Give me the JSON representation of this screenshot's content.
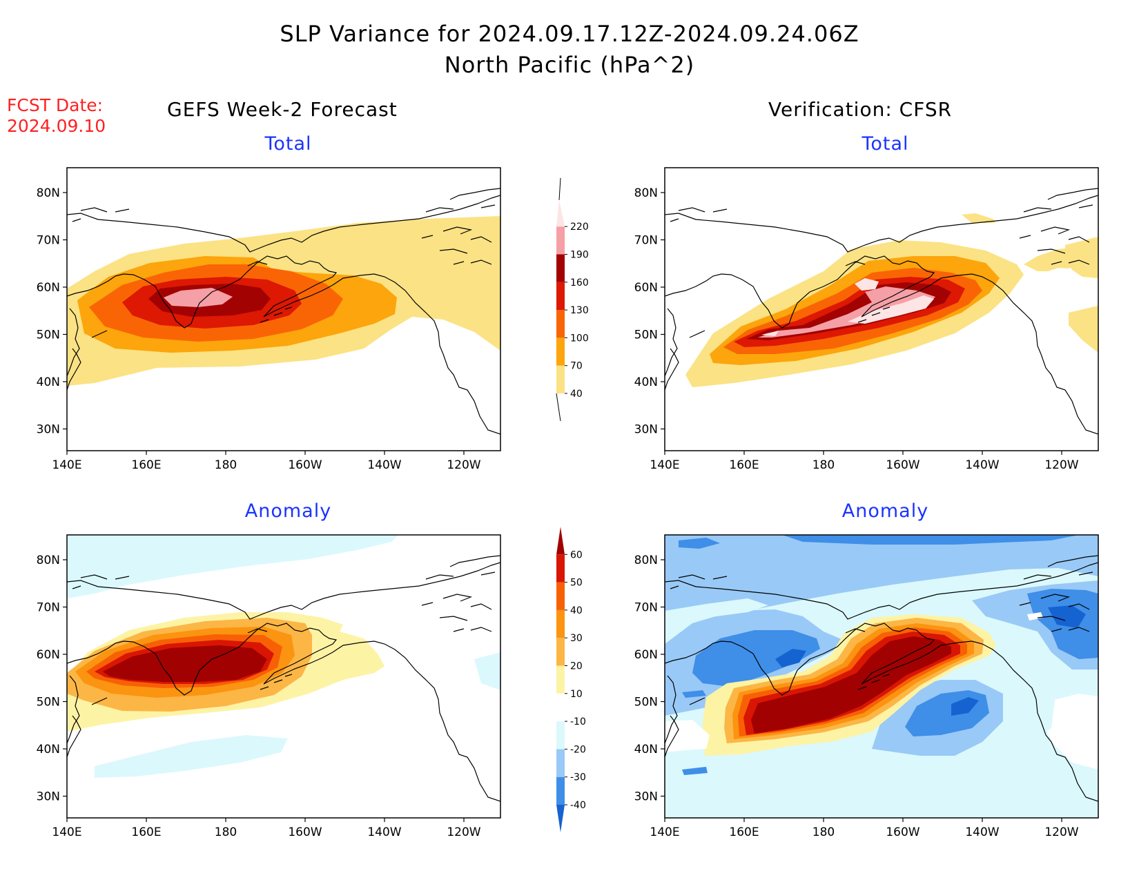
{
  "title": {
    "line1": "SLP Variance for 2024.09.17.12Z-2024.09.24.06Z",
    "line2": "North Pacific (hPa^2)"
  },
  "forecast_date": {
    "label": "FCST Date:",
    "value": "2024.09.10"
  },
  "columns": {
    "left": "GEFS Week-2 Forecast",
    "right": "Verification: CFSR"
  },
  "panels": [
    {
      "id": "gefs-total",
      "subtitle": "Total",
      "scale": "total"
    },
    {
      "id": "cfsr-total",
      "subtitle": "Total",
      "scale": "total"
    },
    {
      "id": "gefs-anomaly",
      "subtitle": "Anomaly",
      "scale": "anomaly"
    },
    {
      "id": "cfsr-anomaly",
      "subtitle": "Anomaly",
      "scale": "anomaly"
    }
  ],
  "axes": {
    "lon_ticks": [
      "140E",
      "160E",
      "180",
      "160W",
      "140W",
      "120W"
    ],
    "lat_ticks": [
      "80N",
      "70N",
      "60N",
      "50N",
      "40N",
      "30N"
    ]
  },
  "colorbars": {
    "total": {
      "levels": [
        "40",
        "70",
        "100",
        "130",
        "160",
        "190",
        "220"
      ],
      "colors": [
        "#fbe284",
        "#fca50c",
        "#f96505",
        "#dd1803",
        "#a30202",
        "#f5a0a6",
        "#fde4e5"
      ]
    },
    "anomaly": {
      "levels": [
        "-40",
        "-30",
        "-20",
        "-10",
        "10",
        "20",
        "30",
        "40",
        "50",
        "60"
      ],
      "colors": [
        "#1563d0",
        "#3f8ee8",
        "#99c9f6",
        "#dbf8fd",
        "#ffffff",
        "#fdf3a5",
        "#fcb646",
        "#fb9410",
        "#f86005",
        "#d81603",
        "#a20102"
      ]
    }
  }
}
